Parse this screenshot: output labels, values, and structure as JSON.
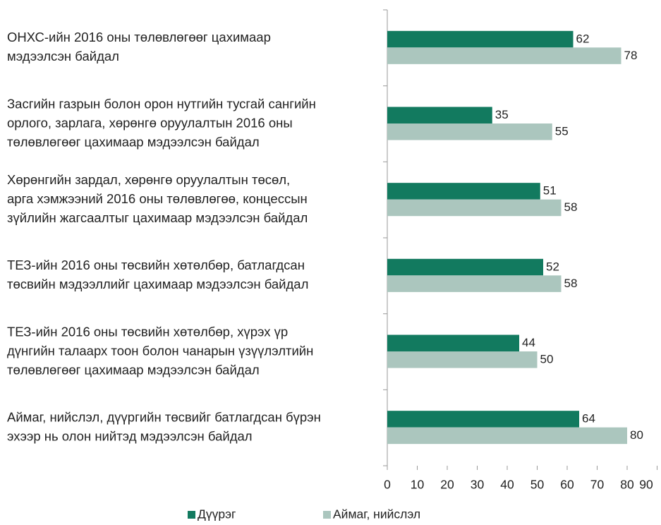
{
  "chart_data": {
    "type": "hbar",
    "categories": [
      [
        "ОНХС-ийн 2016 оны төлөвлөгөөг цахимаар",
        "мэдээлсэн байдал"
      ],
      [
        "Засгийн газрын болон орон нутгийн тусгай сангийн",
        "орлого, зарлага, хөрөнгө оруулалтын 2016 оны",
        "төлөвлөгөөг цахимаар мэдээлсэн байдал"
      ],
      [
        "Хөрөнгийн зардал, хөрөнгө оруулалтын төсөл,",
        "арга хэмжээний 2016 оны төлөвлөгөө, концессын",
        "зүйлийн жагсаалтыг цахимаар мэдээлсэн байдал"
      ],
      [
        "ТЕЗ-ийн 2016 оны төсвийн хөтөлбөр, батлагдсан",
        "төсвийн мэдээллийг цахимаар мэдээлсэн байдал"
      ],
      [
        "ТЕЗ-ийн 2016 оны төсвийн хөтөлбөр, хүрэх үр",
        "дүнгийн талаарх тоон болон чанарын үзүүлэлтийн",
        "төлөвлөгөөг цахимаар мэдээлсэн байдал"
      ],
      [
        "Аймаг, нийслэл, дүүргийн төсвийг батлагдсан бүрэн",
        "эхээр нь олон нийтэд мэдээлсэн байдал"
      ]
    ],
    "series": [
      {
        "name": "Дүүрэг",
        "color": "#127a5f",
        "values": [
          62,
          35,
          51,
          52,
          44,
          64
        ]
      },
      {
        "name": "Аймаг, нийслэл",
        "color": "#abc6be",
        "values": [
          78,
          55,
          58,
          58,
          50,
          80
        ]
      }
    ],
    "xlim": [
      0,
      90
    ],
    "xticks": [
      0,
      10,
      20,
      30,
      40,
      50,
      60,
      70,
      80,
      90
    ],
    "legend": "bottom"
  }
}
